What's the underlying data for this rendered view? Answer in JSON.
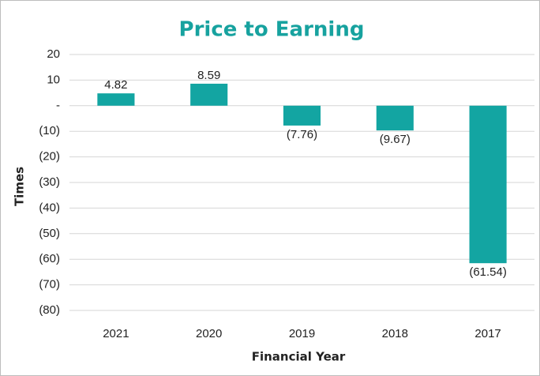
{
  "chart_data": {
    "type": "bar",
    "title": "Price to Earning",
    "x_label": "Financial Year",
    "y_label": "Times",
    "categories": [
      "2021",
      "2020",
      "2019",
      "2018",
      "2017"
    ],
    "values": [
      4.82,
      8.59,
      -7.76,
      -9.67,
      -61.54
    ],
    "value_labels": [
      "4.82",
      "8.59",
      "(7.76)",
      "(9.67)",
      "(61.54)"
    ],
    "color": "#13a5a2",
    "ylim": [
      -80,
      20
    ],
    "yticks": [
      20,
      10,
      {
        "value": 0,
        "label": "-"
      },
      {
        "value": -10,
        "label": "(10)"
      },
      {
        "value": -20,
        "label": "(20)"
      },
      {
        "value": -30,
        "label": "(30)"
      },
      {
        "value": -40,
        "label": "(40)"
      },
      {
        "value": -50,
        "label": "(50)"
      },
      {
        "value": -60,
        "label": "(60)"
      },
      {
        "value": -70,
        "label": "(70)"
      },
      {
        "value": -80,
        "label": "(80)"
      }
    ],
    "grid": true
  }
}
